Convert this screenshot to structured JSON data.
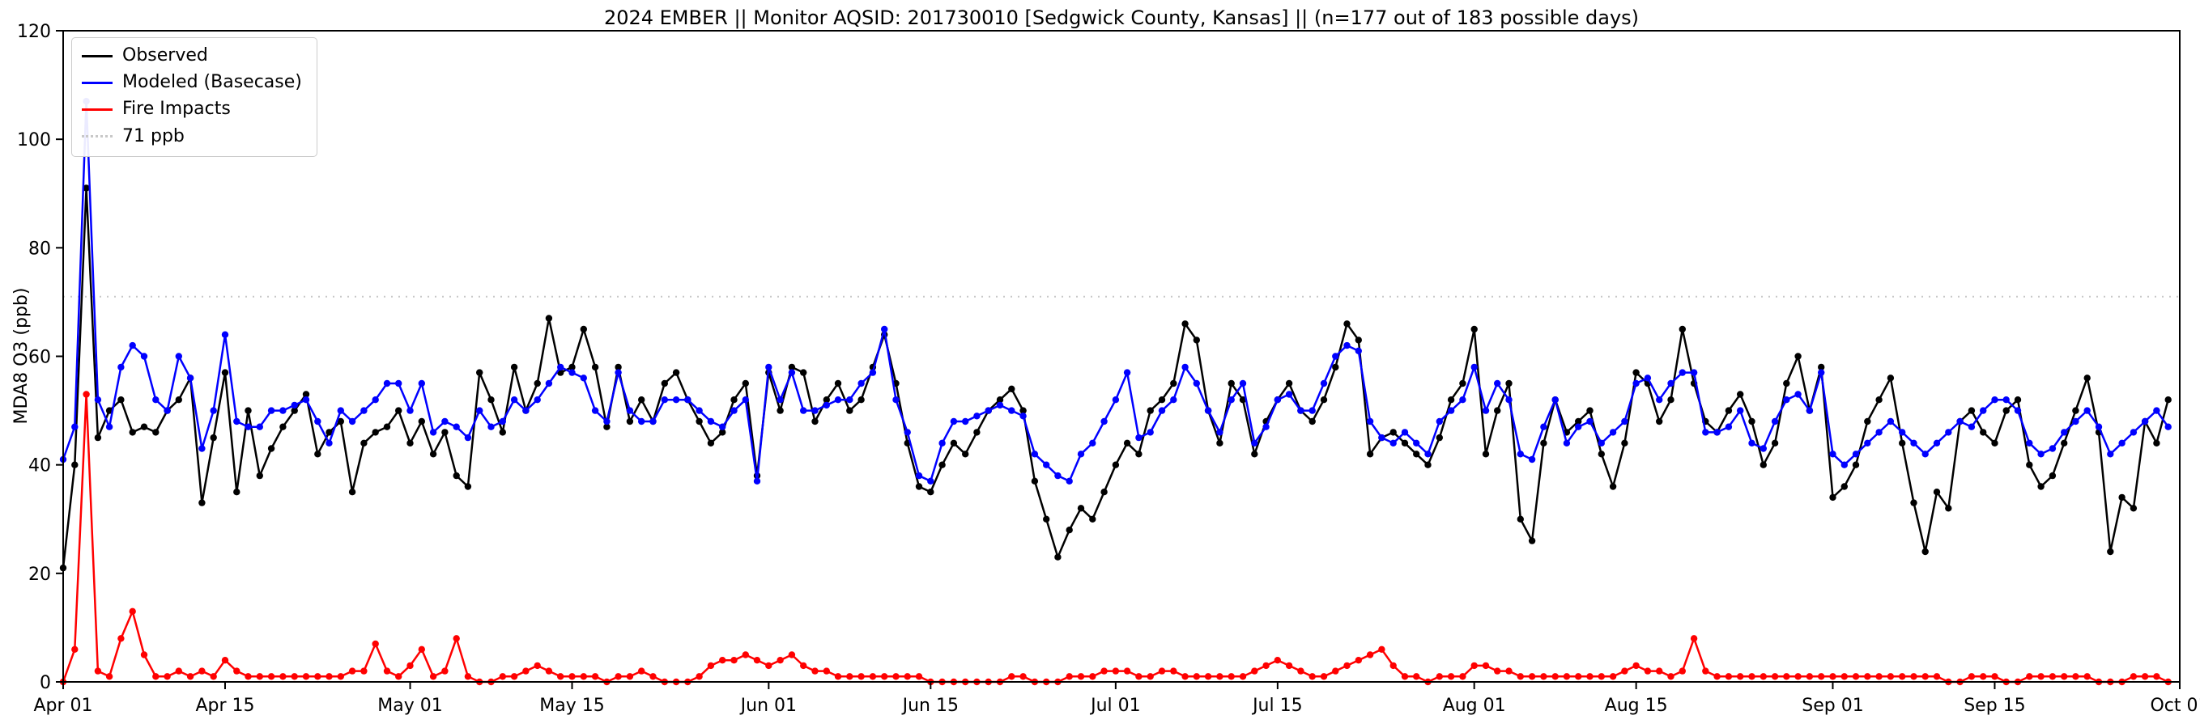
{
  "title": "2024 EMBER || Monitor AQSID: 201730010 [Sedgwick County, Kansas] || (n=177 out of 183 possible days)",
  "chart_data": {
    "type": "line",
    "title": "2024 EMBER || Monitor AQSID: 201730010 [Sedgwick County, Kansas] || (n=177 out of 183 possible days)",
    "xlabel": "",
    "ylabel": "MDA8 O3 (ppb)",
    "ylim": [
      0,
      120
    ],
    "yticks": [
      0,
      20,
      40,
      60,
      80,
      100,
      120
    ],
    "x_range": [
      "Apr 01",
      "Oct 01"
    ],
    "n_days": 183,
    "grid": false,
    "legend_position": "upper left",
    "xticks": [
      {
        "day": 0,
        "label": "Apr 01"
      },
      {
        "day": 14,
        "label": "Apr 15"
      },
      {
        "day": 30,
        "label": "May 01"
      },
      {
        "day": 44,
        "label": "May 15"
      },
      {
        "day": 61,
        "label": "Jun 01"
      },
      {
        "day": 75,
        "label": "Jun 15"
      },
      {
        "day": 91,
        "label": "Jul 01"
      },
      {
        "day": 105,
        "label": "Jul 15"
      },
      {
        "day": 122,
        "label": "Aug 01"
      },
      {
        "day": 136,
        "label": "Aug 15"
      },
      {
        "day": 153,
        "label": "Sep 01"
      },
      {
        "day": 167,
        "label": "Sep 15"
      },
      {
        "day": 183,
        "label": "Oct 01"
      }
    ],
    "reference_line": {
      "value": 71,
      "label": "71 ppb",
      "style": "dotted",
      "color": "#c8c8c8"
    },
    "series": [
      {
        "name": "Observed",
        "color": "#000000",
        "values": [
          21,
          40,
          91,
          45,
          50,
          52,
          46,
          47,
          46,
          50,
          52,
          56,
          33,
          45,
          57,
          35,
          50,
          38,
          43,
          47,
          50,
          53,
          42,
          46,
          48,
          35,
          44,
          46,
          47,
          50,
          44,
          48,
          42,
          46,
          38,
          36,
          57,
          52,
          46,
          58,
          50,
          55,
          67,
          57,
          58,
          65,
          58,
          47,
          58,
          48,
          52,
          48,
          55,
          57,
          52,
          48,
          44,
          46,
          52,
          55,
          38,
          57,
          50,
          58,
          57,
          48,
          52,
          55,
          50,
          52,
          58,
          64,
          55,
          44,
          36,
          35,
          40,
          44,
          42,
          46,
          50,
          52,
          54,
          50,
          37,
          30,
          23,
          28,
          32,
          30,
          35,
          40,
          44,
          42,
          50,
          52,
          55,
          66,
          63,
          50,
          44,
          55,
          52,
          42,
          48,
          52,
          55,
          50,
          48,
          52,
          58,
          66,
          63,
          42,
          45,
          46,
          44,
          42,
          40,
          45,
          52,
          55,
          65,
          42,
          50,
          55,
          30,
          26,
          44,
          52,
          46,
          48,
          50,
          42,
          36,
          44,
          57,
          55,
          48,
          52,
          65,
          55,
          48,
          46,
          50,
          53,
          48,
          40,
          44,
          55,
          60,
          50,
          58,
          34,
          36,
          40,
          48,
          52,
          56,
          44,
          33,
          24,
          35,
          32,
          48,
          50,
          46,
          44,
          50,
          52,
          40,
          36,
          38,
          44,
          50,
          56,
          46,
          24,
          34,
          32,
          48,
          44,
          52
        ]
      },
      {
        "name": "Modeled (Basecase)",
        "color": "#0000ff",
        "values": [
          41,
          47,
          107,
          52,
          47,
          58,
          62,
          60,
          52,
          50,
          60,
          56,
          43,
          50,
          64,
          48,
          47,
          47,
          50,
          50,
          51,
          52,
          48,
          44,
          50,
          48,
          50,
          52,
          55,
          55,
          50,
          55,
          46,
          48,
          47,
          45,
          50,
          47,
          48,
          52,
          50,
          52,
          55,
          58,
          57,
          56,
          50,
          48,
          57,
          50,
          48,
          48,
          52,
          52,
          52,
          50,
          48,
          47,
          50,
          52,
          37,
          58,
          52,
          57,
          50,
          50,
          51,
          52,
          52,
          55,
          57,
          65,
          52,
          46,
          38,
          37,
          44,
          48,
          48,
          49,
          50,
          51,
          50,
          49,
          42,
          40,
          38,
          37,
          42,
          44,
          48,
          52,
          57,
          45,
          46,
          50,
          52,
          58,
          55,
          50,
          46,
          52,
          55,
          44,
          47,
          52,
          53,
          50,
          50,
          55,
          60,
          62,
          61,
          48,
          45,
          44,
          46,
          44,
          42,
          48,
          50,
          52,
          58,
          50,
          55,
          52,
          42,
          41,
          47,
          52,
          44,
          47,
          48,
          44,
          46,
          48,
          55,
          56,
          52,
          55,
          57,
          57,
          46,
          46,
          47,
          50,
          44,
          43,
          48,
          52,
          53,
          50,
          57,
          42,
          40,
          42,
          44,
          46,
          48,
          46,
          44,
          42,
          44,
          46,
          48,
          47,
          50,
          52,
          52,
          50,
          44,
          42,
          43,
          46,
          48,
          50,
          47,
          42,
          44,
          46,
          48,
          50,
          47
        ]
      },
      {
        "name": "Fire Impacts",
        "color": "#ff0000",
        "values": [
          0,
          6,
          53,
          2,
          1,
          8,
          13,
          5,
          1,
          1,
          2,
          1,
          2,
          1,
          4,
          2,
          1,
          1,
          1,
          1,
          1,
          1,
          1,
          1,
          1,
          2,
          2,
          7,
          2,
          1,
          3,
          6,
          1,
          2,
          8,
          1,
          0,
          0,
          1,
          1,
          2,
          3,
          2,
          1,
          1,
          1,
          1,
          0,
          1,
          1,
          2,
          1,
          0,
          0,
          0,
          1,
          3,
          4,
          4,
          5,
          4,
          3,
          4,
          5,
          3,
          2,
          2,
          1,
          1,
          1,
          1,
          1,
          1,
          1,
          1,
          0,
          0,
          0,
          0,
          0,
          0,
          0,
          1,
          1,
          0,
          0,
          0,
          1,
          1,
          1,
          2,
          2,
          2,
          1,
          1,
          2,
          2,
          1,
          1,
          1,
          1,
          1,
          1,
          2,
          3,
          4,
          3,
          2,
          1,
          1,
          2,
          3,
          4,
          5,
          6,
          3,
          1,
          1,
          0,
          1,
          1,
          1,
          3,
          3,
          2,
          2,
          1,
          1,
          1,
          1,
          1,
          1,
          1,
          1,
          1,
          2,
          3,
          2,
          2,
          1,
          2,
          8,
          2,
          1,
          1,
          1,
          1,
          1,
          1,
          1,
          1,
          1,
          1,
          1,
          1,
          1,
          1,
          1,
          1,
          1,
          1,
          1,
          1,
          0,
          0,
          1,
          1,
          1,
          0,
          0,
          1,
          1,
          1,
          1,
          1,
          1,
          0,
          0,
          0,
          1,
          1,
          1,
          0
        ]
      }
    ]
  }
}
